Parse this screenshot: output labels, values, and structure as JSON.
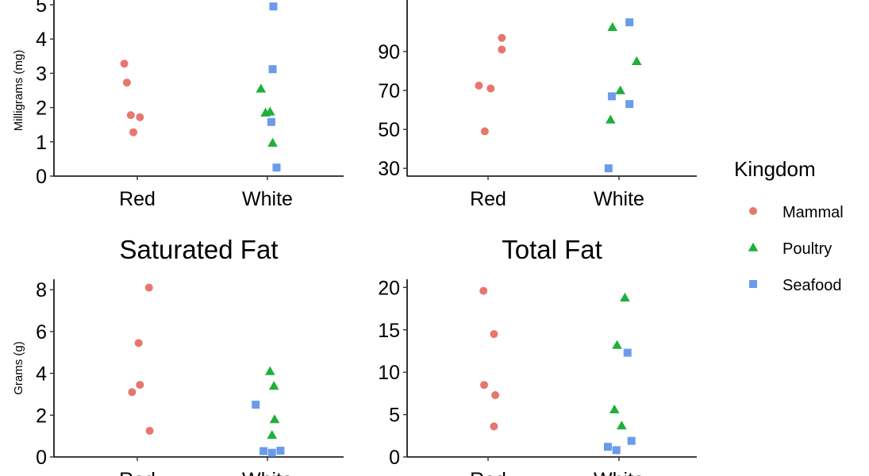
{
  "chart_data": [
    {
      "type": "scatter",
      "title": "",
      "ylabel": "Milligrams (mg)",
      "categories": [
        "Red",
        "White"
      ],
      "ylim": [
        0,
        5
      ],
      "yticks": [
        0,
        1,
        2,
        3,
        4,
        5
      ],
      "points": [
        {
          "category": "Red",
          "jitter": -0.2,
          "y": 3.28,
          "group": "Mammal"
        },
        {
          "category": "Red",
          "jitter": -0.16,
          "y": 2.73,
          "group": "Mammal"
        },
        {
          "category": "Red",
          "jitter": -0.1,
          "y": 1.78,
          "group": "Mammal"
        },
        {
          "category": "Red",
          "jitter": 0.04,
          "y": 1.72,
          "group": "Mammal"
        },
        {
          "category": "Red",
          "jitter": -0.06,
          "y": 1.28,
          "group": "Mammal"
        },
        {
          "category": "White",
          "jitter": -0.1,
          "y": 2.55,
          "group": "Poultry"
        },
        {
          "category": "White",
          "jitter": -0.03,
          "y": 1.85,
          "group": "Poultry"
        },
        {
          "category": "White",
          "jitter": 0.04,
          "y": 1.88,
          "group": "Poultry"
        },
        {
          "category": "White",
          "jitter": 0.08,
          "y": 0.97,
          "group": "Poultry"
        },
        {
          "category": "White",
          "jitter": 0.09,
          "y": 4.95,
          "group": "Seafood"
        },
        {
          "category": "White",
          "jitter": 0.08,
          "y": 3.12,
          "group": "Seafood"
        },
        {
          "category": "White",
          "jitter": 0.06,
          "y": 1.58,
          "group": "Seafood"
        },
        {
          "category": "White",
          "jitter": 0.14,
          "y": 0.25,
          "group": "Seafood"
        }
      ]
    },
    {
      "type": "scatter",
      "title": "",
      "ylabel": "",
      "categories": [
        "Red",
        "White"
      ],
      "ylim": [
        26,
        114
      ],
      "yticks": [
        30,
        50,
        70,
        90
      ],
      "points": [
        {
          "category": "Red",
          "jitter": -0.14,
          "y": 72.5,
          "group": "Mammal"
        },
        {
          "category": "Red",
          "jitter": 0.04,
          "y": 71,
          "group": "Mammal"
        },
        {
          "category": "Red",
          "jitter": -0.05,
          "y": 49,
          "group": "Mammal"
        },
        {
          "category": "Red",
          "jitter": 0.21,
          "y": 97,
          "group": "Mammal"
        },
        {
          "category": "Red",
          "jitter": 0.21,
          "y": 91,
          "group": "Mammal"
        },
        {
          "category": "White",
          "jitter": -0.1,
          "y": 102.5,
          "group": "Poultry"
        },
        {
          "category": "White",
          "jitter": 0.02,
          "y": 70,
          "group": "Poultry"
        },
        {
          "category": "White",
          "jitter": -0.13,
          "y": 55,
          "group": "Poultry"
        },
        {
          "category": "White",
          "jitter": 0.27,
          "y": 85,
          "group": "Poultry"
        },
        {
          "category": "White",
          "jitter": 0.16,
          "y": 105,
          "group": "Seafood"
        },
        {
          "category": "White",
          "jitter": -0.11,
          "y": 67,
          "group": "Seafood"
        },
        {
          "category": "White",
          "jitter": 0.16,
          "y": 63,
          "group": "Seafood"
        },
        {
          "category": "White",
          "jitter": -0.16,
          "y": 30,
          "group": "Seafood"
        }
      ]
    },
    {
      "type": "scatter",
      "title": "Saturated Fat",
      "ylabel": "Grams (g)",
      "categories": [
        "Red",
        "White"
      ],
      "ylim": [
        0,
        8.5
      ],
      "yticks": [
        0,
        2,
        4,
        6,
        8
      ],
      "points": [
        {
          "category": "Red",
          "jitter": 0.18,
          "y": 8.1,
          "group": "Mammal"
        },
        {
          "category": "Red",
          "jitter": 0.02,
          "y": 5.45,
          "group": "Mammal"
        },
        {
          "category": "Red",
          "jitter": 0.04,
          "y": 3.45,
          "group": "Mammal"
        },
        {
          "category": "Red",
          "jitter": -0.08,
          "y": 3.1,
          "group": "Mammal"
        },
        {
          "category": "Red",
          "jitter": 0.19,
          "y": 1.25,
          "group": "Mammal"
        },
        {
          "category": "White",
          "jitter": 0.04,
          "y": 4.1,
          "group": "Poultry"
        },
        {
          "category": "White",
          "jitter": 0.1,
          "y": 3.4,
          "group": "Poultry"
        },
        {
          "category": "White",
          "jitter": 0.11,
          "y": 1.8,
          "group": "Poultry"
        },
        {
          "category": "White",
          "jitter": 0.07,
          "y": 1.05,
          "group": "Poultry"
        },
        {
          "category": "White",
          "jitter": -0.18,
          "y": 2.5,
          "group": "Seafood"
        },
        {
          "category": "White",
          "jitter": -0.06,
          "y": 0.28,
          "group": "Seafood"
        },
        {
          "category": "White",
          "jitter": 0.07,
          "y": 0.2,
          "group": "Seafood"
        },
        {
          "category": "White",
          "jitter": 0.2,
          "y": 0.3,
          "group": "Seafood"
        }
      ]
    },
    {
      "type": "scatter",
      "title": "Total Fat",
      "ylabel": "",
      "categories": [
        "Red",
        "White"
      ],
      "ylim": [
        0,
        20.5
      ],
      "yticks": [
        0,
        5,
        10,
        15,
        20
      ],
      "points": [
        {
          "category": "Red",
          "jitter": -0.07,
          "y": 19.6,
          "group": "Mammal"
        },
        {
          "category": "Red",
          "jitter": 0.09,
          "y": 14.5,
          "group": "Mammal"
        },
        {
          "category": "Red",
          "jitter": -0.06,
          "y": 8.5,
          "group": "Mammal"
        },
        {
          "category": "Red",
          "jitter": 0.11,
          "y": 7.3,
          "group": "Mammal"
        },
        {
          "category": "Red",
          "jitter": 0.09,
          "y": 3.6,
          "group": "Mammal"
        },
        {
          "category": "White",
          "jitter": 0.09,
          "y": 18.8,
          "group": "Poultry"
        },
        {
          "category": "White",
          "jitter": -0.03,
          "y": 13.2,
          "group": "Poultry"
        },
        {
          "category": "White",
          "jitter": -0.07,
          "y": 5.6,
          "group": "Poultry"
        },
        {
          "category": "White",
          "jitter": 0.04,
          "y": 3.7,
          "group": "Poultry"
        },
        {
          "category": "White",
          "jitter": 0.13,
          "y": 12.3,
          "group": "Seafood"
        },
        {
          "category": "White",
          "jitter": 0.19,
          "y": 1.9,
          "group": "Seafood"
        },
        {
          "category": "White",
          "jitter": -0.17,
          "y": 1.2,
          "group": "Seafood"
        },
        {
          "category": "White",
          "jitter": -0.04,
          "y": 0.8,
          "group": "Seafood"
        }
      ]
    }
  ],
  "legend": {
    "title": "Kingdom",
    "placement": "right",
    "entries": [
      {
        "name": "Mammal",
        "shape": "circle",
        "color": "#E7766F"
      },
      {
        "name": "Poultry",
        "shape": "triangle",
        "color": "#1FAF3A"
      },
      {
        "name": "Seafood",
        "shape": "square",
        "color": "#6B9BEB"
      }
    ]
  }
}
